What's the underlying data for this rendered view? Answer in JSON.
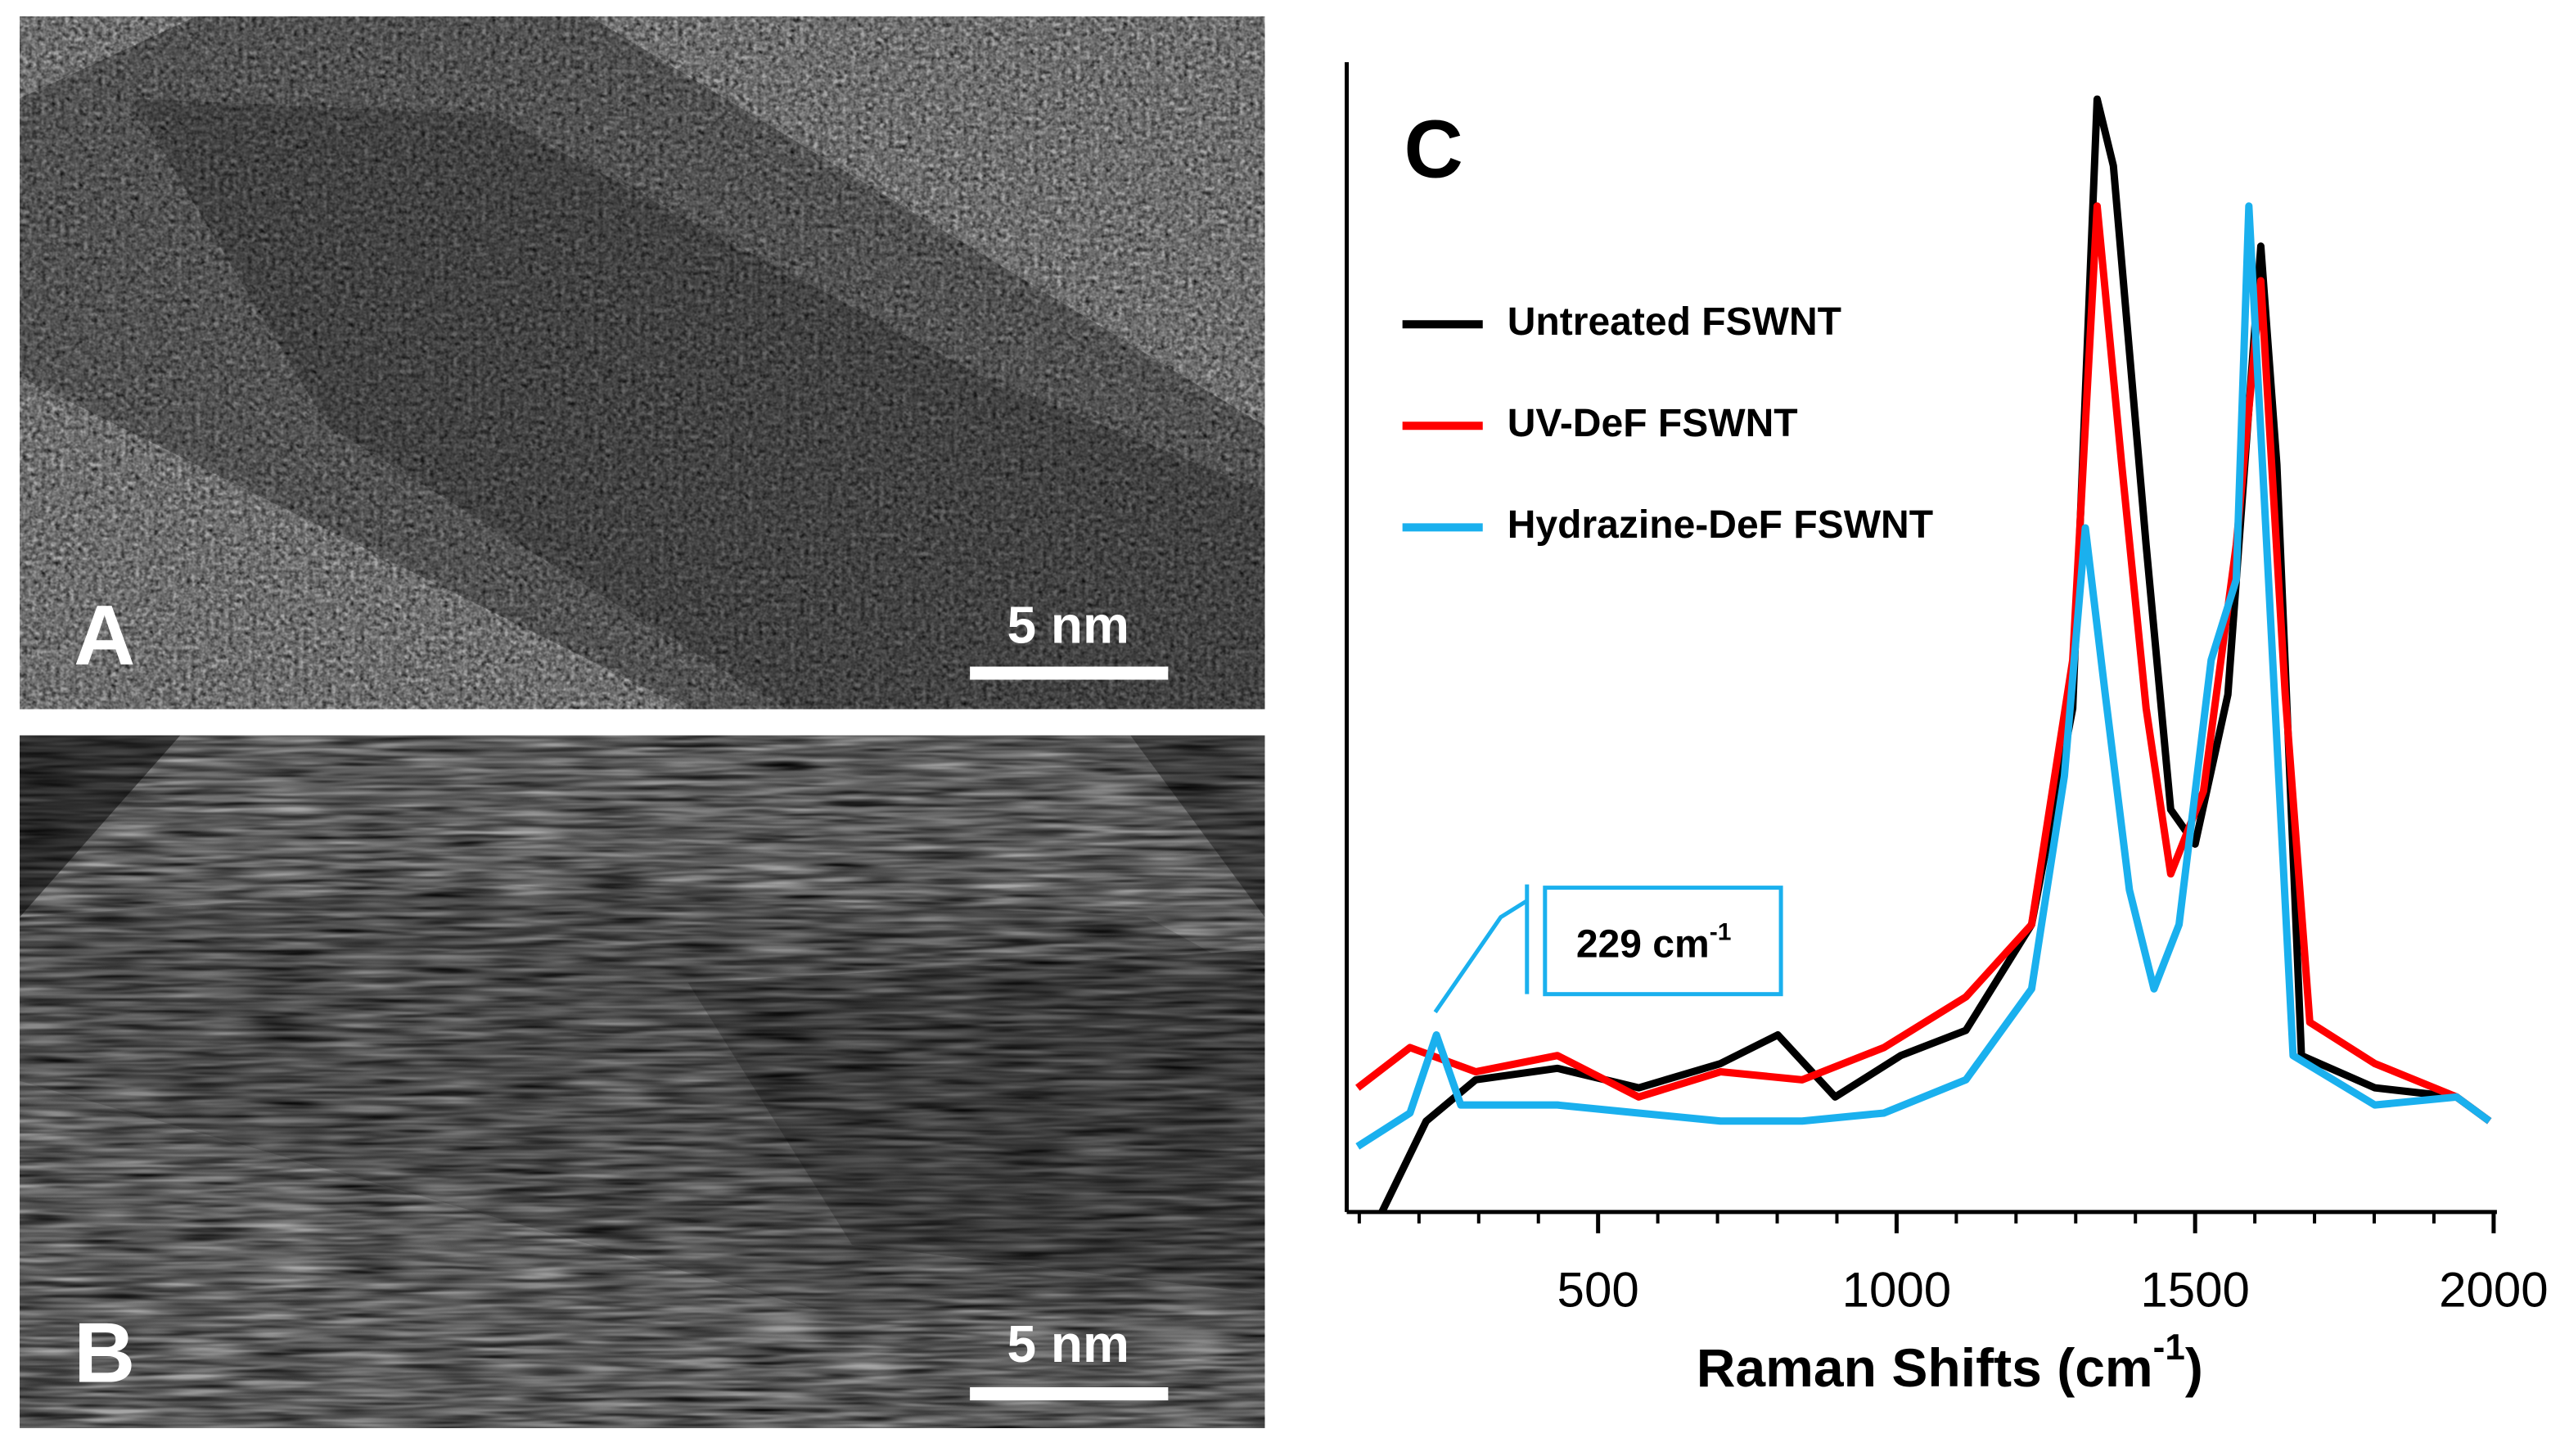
{
  "chart_data": {
    "type": "line",
    "panel_label": "C",
    "x_label": "Raman Shifts (cm",
    "x_label_sup": "-1",
    "x_label_end": ")",
    "xlim": [
      90,
      2000
    ],
    "xticks": [
      500,
      1000,
      1500,
      2000
    ],
    "xminorticks": [
      100,
      200,
      300,
      400,
      500,
      600,
      700,
      800,
      900,
      1000,
      1100,
      1200,
      1300,
      1400,
      1500,
      1600,
      1700,
      1800,
      1900,
      2000
    ],
    "ylim": [
      0,
      100
    ],
    "legend": "top-left",
    "annotation": "229 cm",
    "annotation_sup": "-1",
    "series": [
      {
        "name": "Untreated FSWNT",
        "color": "#000000",
        "x": [
          138,
          212,
          295,
          432,
          568,
          705,
          801,
          897,
          1007,
          1116,
          1226,
          1295,
          1336,
          1363,
          1418,
          1459,
          1500,
          1555,
          1610,
          1637,
          1678,
          1801,
          1938,
          1993
        ],
        "values": [
          0,
          7.9,
          11.5,
          12.5,
          10.8,
          12.9,
          15.4,
          10,
          13.6,
          15.8,
          25,
          43.8,
          96.8,
          91,
          58,
          35,
          32,
          45,
          84,
          65,
          13.6,
          10.8,
          10,
          7.9
        ]
      },
      {
        "name": "UV-DeF FSWNT",
        "color": "#ff0000",
        "x": [
          97,
          185,
          295,
          432,
          568,
          705,
          842,
          979,
          1116,
          1226,
          1295,
          1336,
          1377,
          1418,
          1459,
          1514,
          1569,
          1610,
          1651,
          1692,
          1801,
          1938,
          1993
        ],
        "values": [
          10.8,
          14.3,
          12.2,
          13.6,
          10,
          12.2,
          11.5,
          14.3,
          18.7,
          25,
          48,
          87.5,
          65,
          43.8,
          29.4,
          36.6,
          58,
          81,
          45,
          16.5,
          12.9,
          10,
          7.9
        ]
      },
      {
        "name": "Hydrazine-DeF FSWNT",
        "color": "#1ab0ee",
        "x": [
          97,
          185,
          229,
          270,
          432,
          568,
          705,
          842,
          979,
          1116,
          1226,
          1281,
          1316,
          1349,
          1390,
          1431,
          1473,
          1527,
          1569,
          1590,
          1623,
          1664,
          1801,
          1938,
          1993
        ],
        "values": [
          5.7,
          8.6,
          15.4,
          9.3,
          9.3,
          8.6,
          7.9,
          7.9,
          8.6,
          11.5,
          19.4,
          37.9,
          59.5,
          45.2,
          28,
          19.4,
          25,
          48,
          55,
          87.5,
          55,
          13.6,
          9.3,
          10,
          7.9
        ]
      }
    ]
  },
  "images": [
    {
      "label": "A",
      "scale_bar": "5 nm"
    },
    {
      "label": "B",
      "scale_bar": "5 nm"
    }
  ]
}
